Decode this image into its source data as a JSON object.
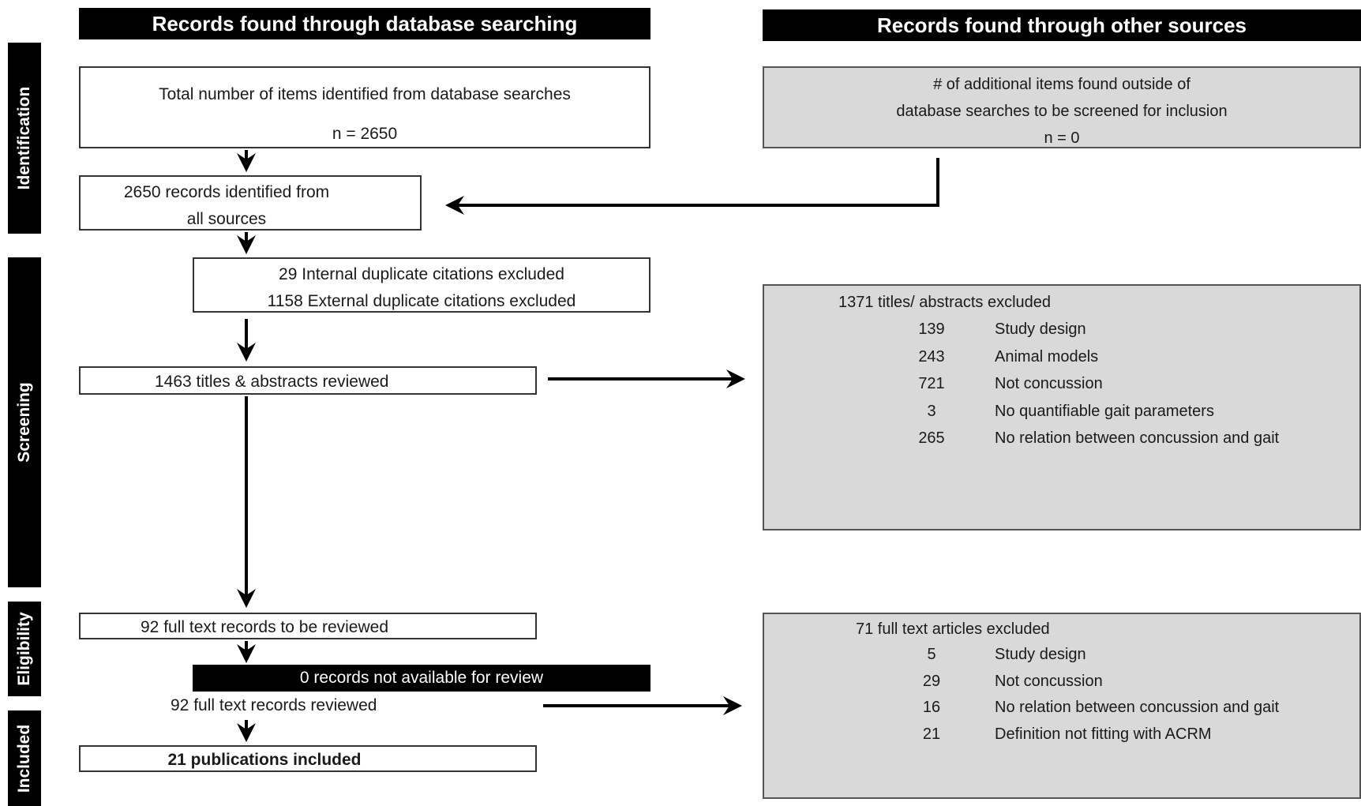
{
  "headers": {
    "left": "Records found through database searching",
    "right": "Records found through other sources"
  },
  "phases": {
    "identification": "Identification",
    "screening": "Screening",
    "eligibility": "Eligibility",
    "included": "Included"
  },
  "db_box": {
    "line1": "Total number of items identified from database searches",
    "line2": "n = 2650"
  },
  "other_box": {
    "line1": "# of additional items found outside of",
    "line2": "database searches to be screened for inclusion",
    "line3": "n = 0"
  },
  "all_sources_box": {
    "line1": "2650 records identified from",
    "line2": "all sources"
  },
  "dup_box": {
    "line1": "29 Internal duplicate citations excluded",
    "line2": "1158 External duplicate citations excluded"
  },
  "reviewed_box": "1463 titles & abstracts reviewed",
  "screen_excluded": {
    "title": "1371 titles/ abstracts excluded",
    "items": [
      {
        "count": "139",
        "reason": "Study design"
      },
      {
        "count": "243",
        "reason": "Animal models"
      },
      {
        "count": "721",
        "reason": "Not concussion"
      },
      {
        "count": "3",
        "reason": "No quantifiable gait parameters"
      },
      {
        "count": "265",
        "reason": "No relation between concussion and gait"
      }
    ]
  },
  "fulltext_box": "92 full text records to be reviewed",
  "not_available": "0 records not available for review",
  "fulltext_reviewed": "92 full text records reviewed",
  "included_box": "21 publications included",
  "full_excluded": {
    "title": "71 full text articles excluded",
    "items": [
      {
        "count": "5",
        "reason": "Study design"
      },
      {
        "count": "29",
        "reason": "Not concussion"
      },
      {
        "count": "16",
        "reason": "No relation between concussion and gait"
      },
      {
        "count": "21",
        "reason": "Definition not fitting with ACRM"
      }
    ]
  }
}
